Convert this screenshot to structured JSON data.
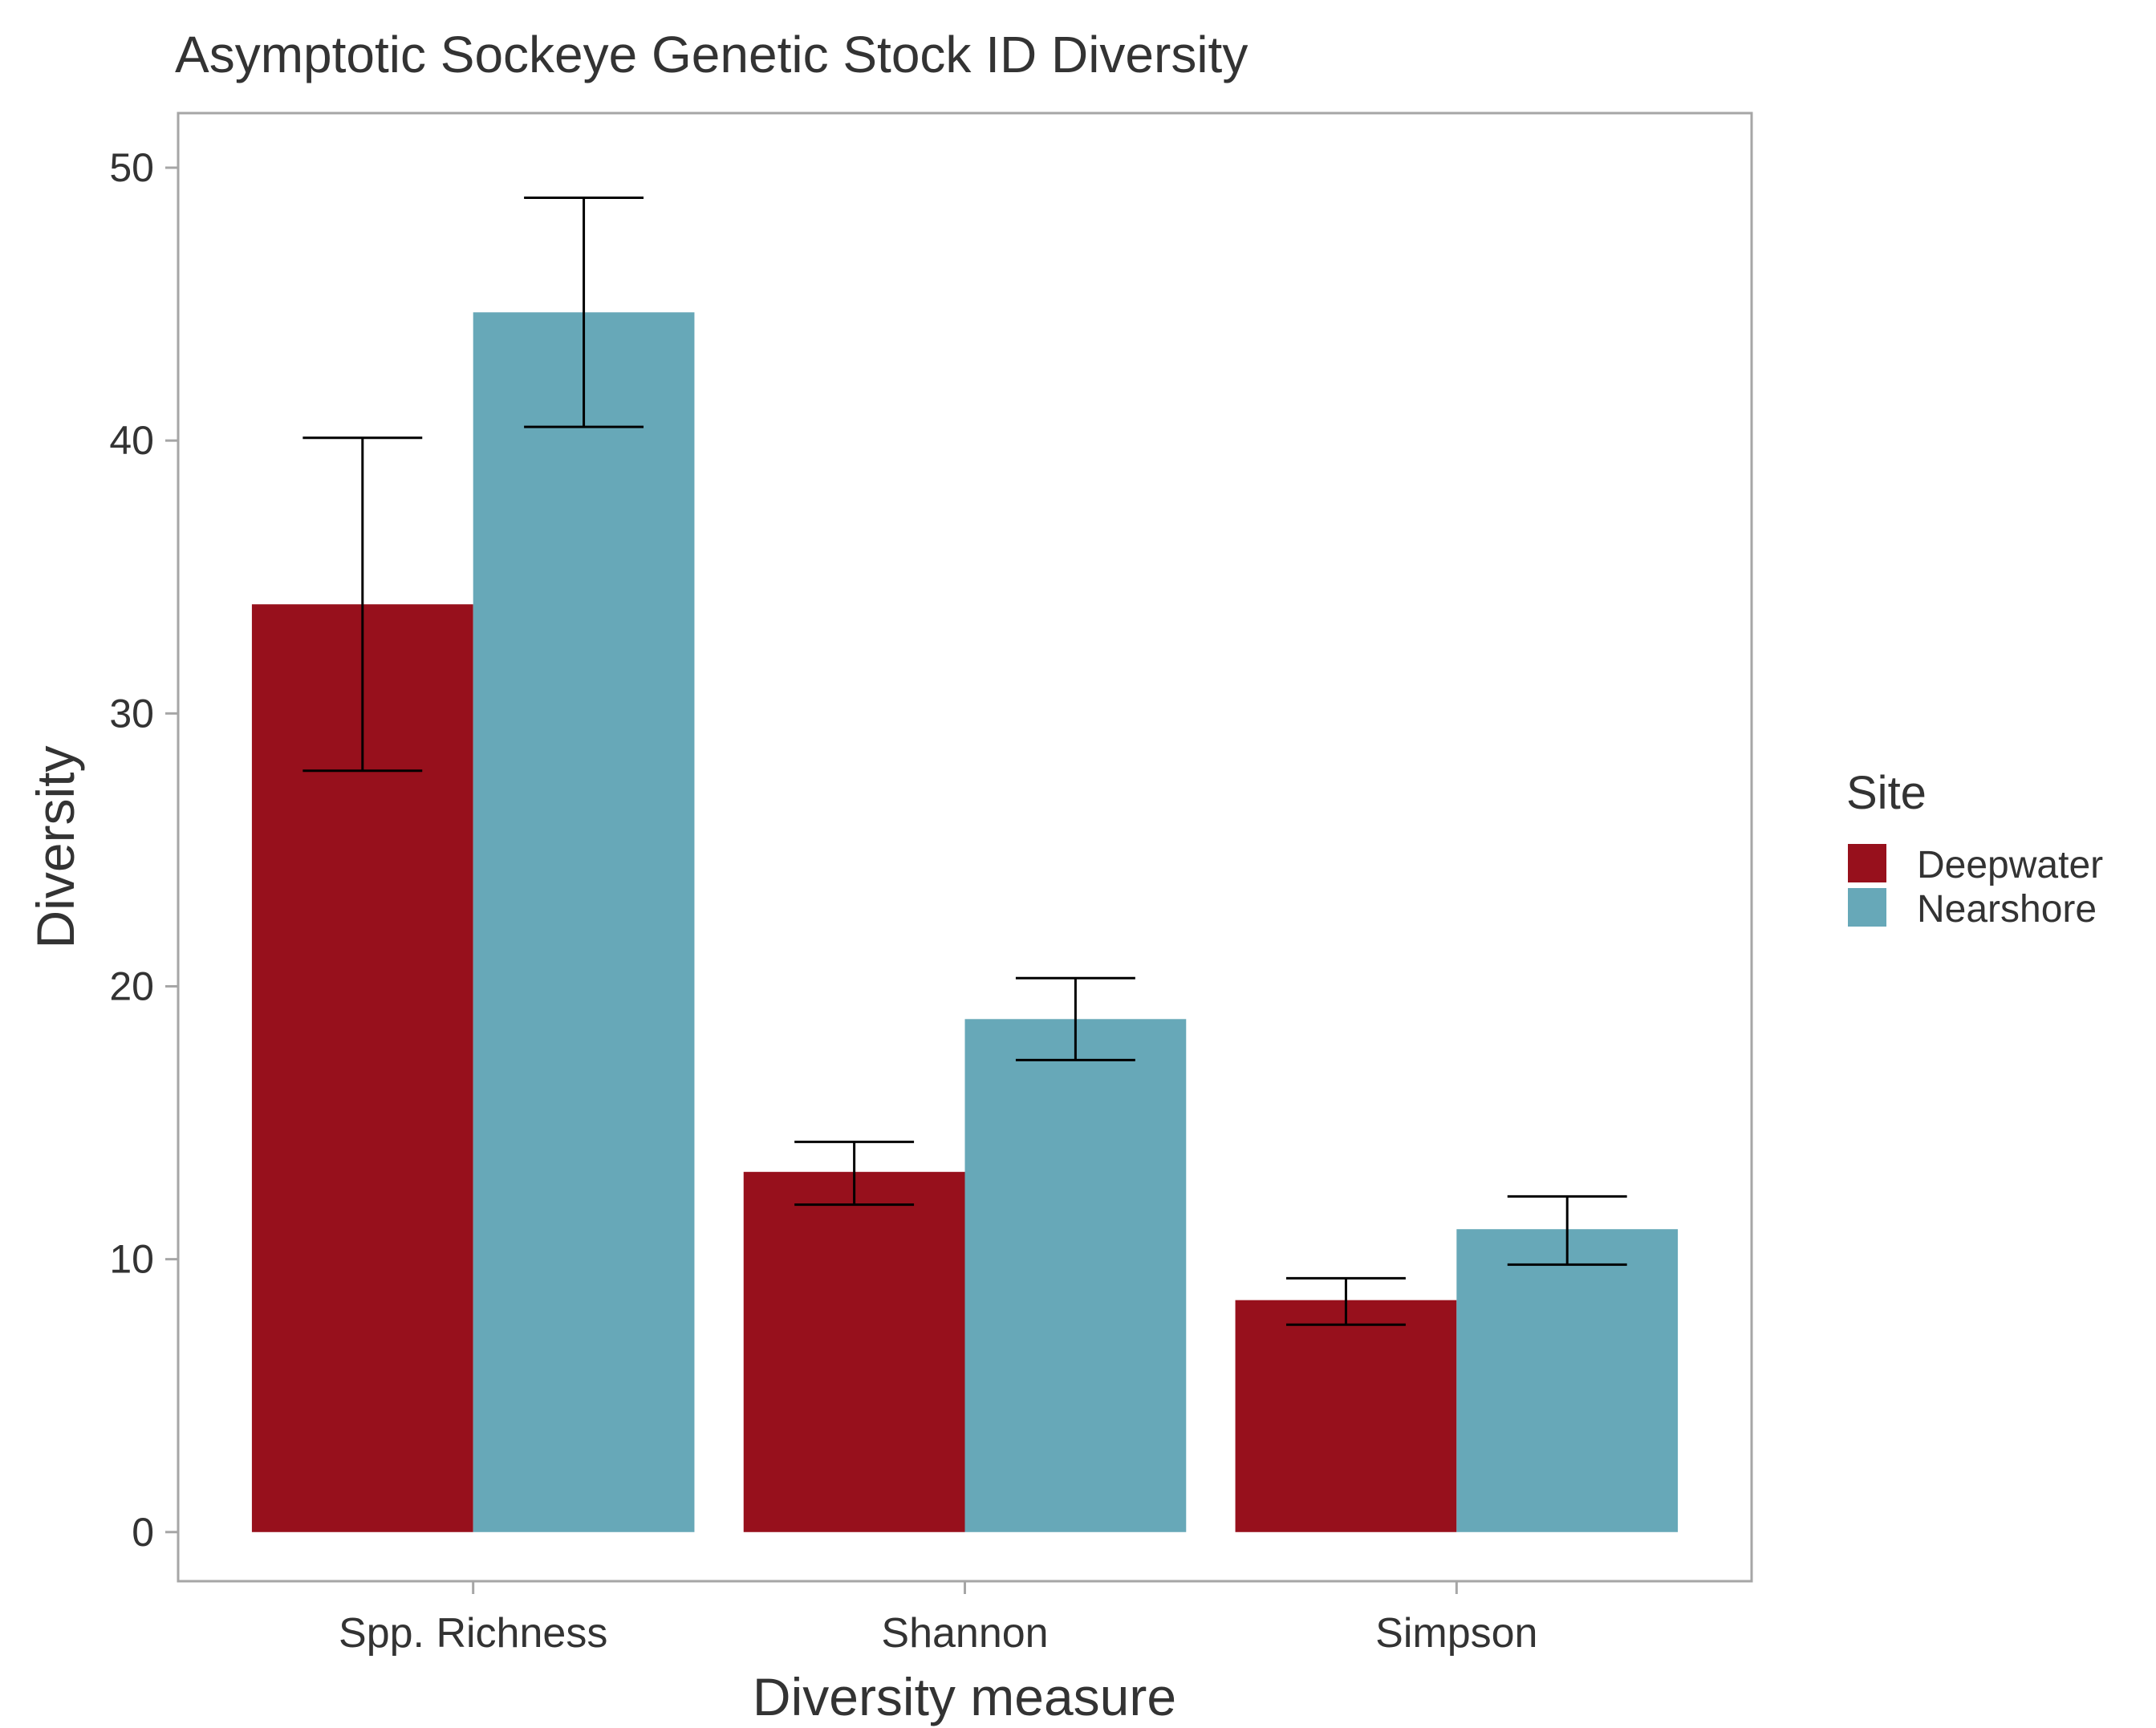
{
  "chart_data": {
    "type": "bar",
    "title": "Asymptotic Sockeye Genetic Stock ID Diversity",
    "xlabel": "Diversity measure",
    "ylabel": "Diversity",
    "categories": [
      "Spp. Richness",
      "Shannon",
      "Simpson"
    ],
    "series": [
      {
        "name": "Deepwater",
        "color": "#97101c",
        "values": [
          34.0,
          13.2,
          8.5
        ],
        "error_low": [
          27.9,
          12.0,
          7.6
        ],
        "error_high": [
          40.1,
          14.3,
          9.3
        ]
      },
      {
        "name": "Nearshore",
        "color": "#67a8b8",
        "values": [
          44.7,
          18.8,
          11.1
        ],
        "error_low": [
          40.5,
          17.3,
          9.8
        ],
        "error_high": [
          48.9,
          20.3,
          12.3
        ]
      }
    ],
    "ylim": [
      -1.8,
      52.0
    ],
    "yticks": [
      0,
      10,
      20,
      30,
      40,
      50
    ],
    "grid": false,
    "legend": {
      "title": "Site",
      "position": "right"
    }
  }
}
